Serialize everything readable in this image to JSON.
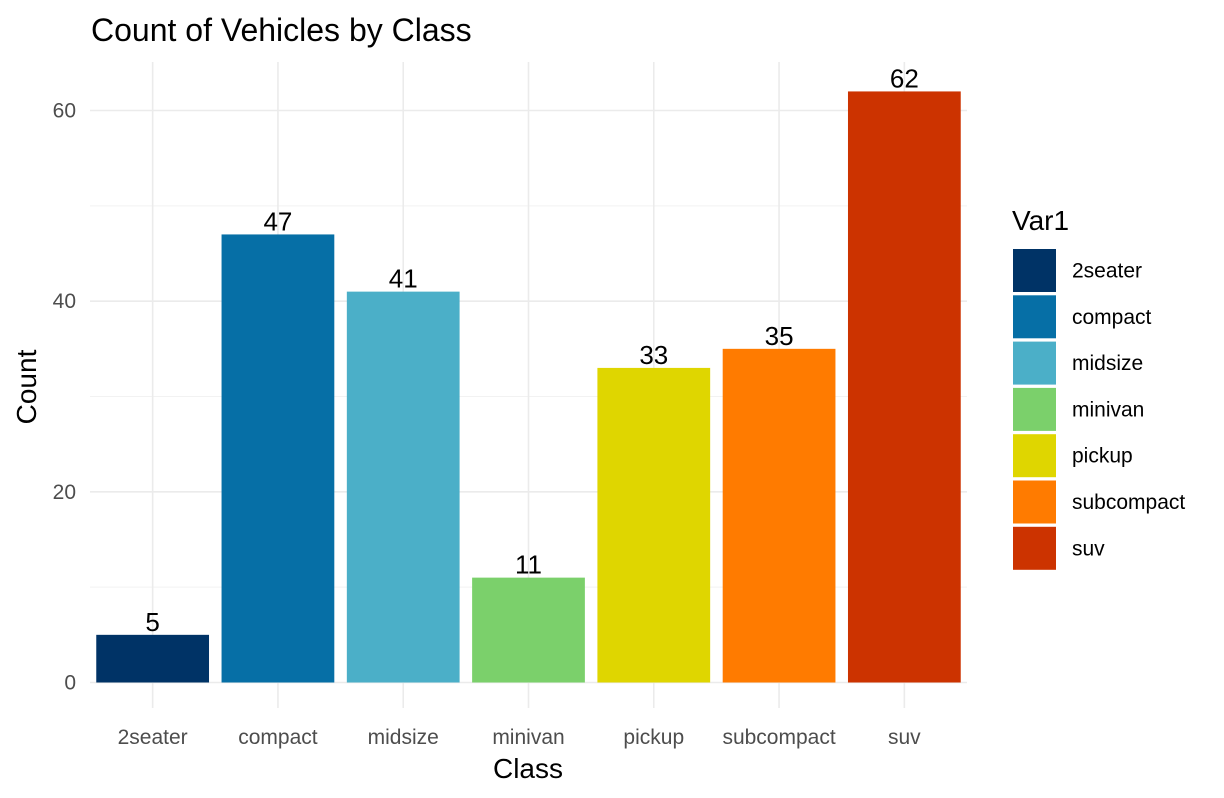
{
  "chart_data": {
    "type": "bar",
    "title": "Count of Vehicles by Class",
    "xlabel": "Class",
    "ylabel": "Count",
    "categories": [
      "2seater",
      "compact",
      "midsize",
      "minivan",
      "pickup",
      "subcompact",
      "suv"
    ],
    "values": [
      5,
      47,
      41,
      11,
      33,
      35,
      62
    ],
    "colors": [
      "#003366",
      "#066FA6",
      "#4BAFC8",
      "#7BD06B",
      "#DFD600",
      "#FF7B00",
      "#CC3300"
    ],
    "ylim": [
      0,
      65
    ],
    "yticks": [
      0,
      20,
      40,
      60
    ],
    "grid": true,
    "legend": {
      "title": "Var1",
      "position": "right"
    }
  }
}
